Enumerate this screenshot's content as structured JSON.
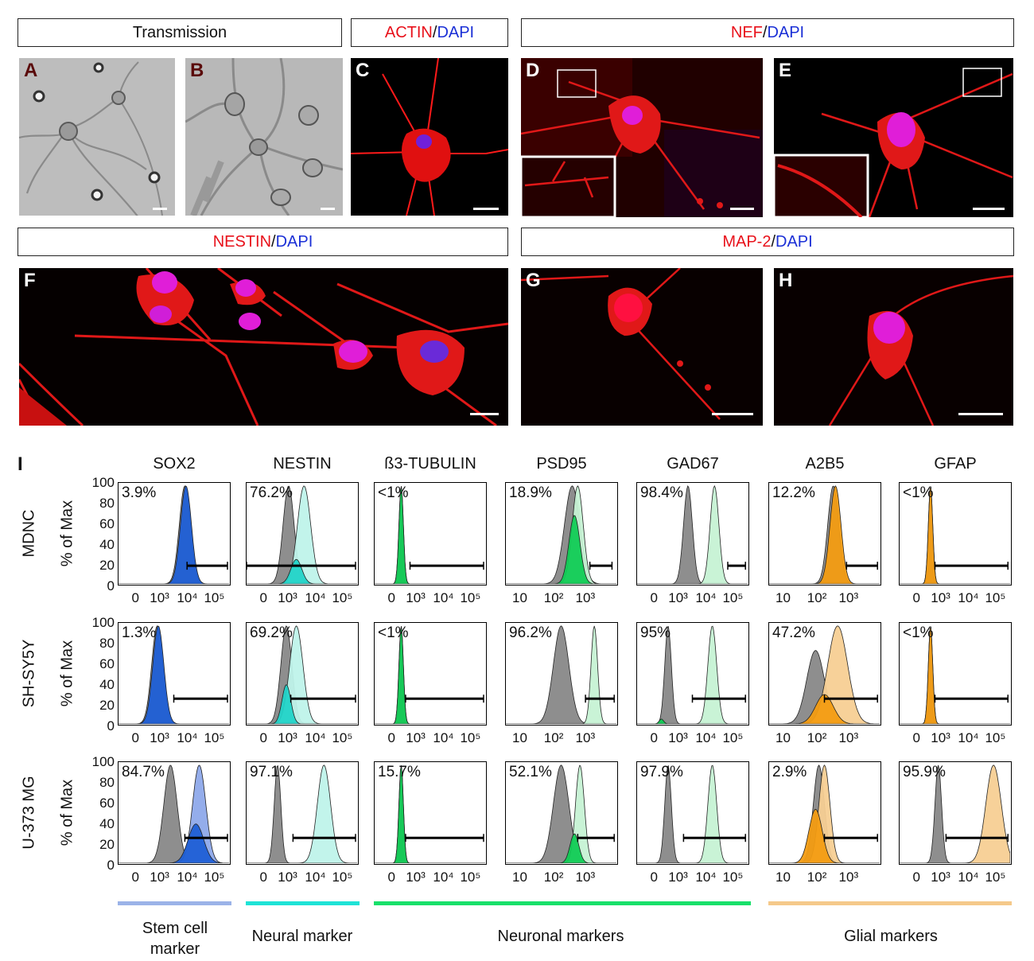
{
  "headers": {
    "transmission": "Transmission",
    "actin": {
      "a": "ACTIN",
      "sep": "/",
      "b": "DAPI"
    },
    "nef": {
      "a": "NEF",
      "sep": "/",
      "b": "DAPI"
    },
    "nestin": {
      "a": "NESTIN",
      "sep": "/",
      "b": "DAPI"
    },
    "map2": {
      "a": "MAP-2",
      "sep": "/",
      "b": "DAPI"
    }
  },
  "panel_labels": {
    "A": "A",
    "B": "B",
    "C": "C",
    "D": "D",
    "E": "E",
    "F": "F",
    "G": "G",
    "H": "H",
    "I": "I"
  },
  "columns": [
    "SOX2",
    "NESTIN",
    "ß3-TUBULIN",
    "PSD95",
    "GAD67",
    "A2B5",
    "GFAP"
  ],
  "rows": [
    "MDNC",
    "SH-SY5Y",
    "U-373 MG"
  ],
  "y_axis": {
    "label": "% of Max",
    "ticks": [
      "100",
      "80",
      "60",
      "40",
      "20",
      "0"
    ]
  },
  "x_ticks": {
    "wide": [
      "0",
      "10³",
      "10⁴",
      "10⁵"
    ],
    "narrow": [
      "10",
      "10²",
      "10³"
    ]
  },
  "percentages": [
    [
      "3.9%",
      "76.2%",
      "<1%",
      "18.9%",
      "98.4%",
      "12.2%",
      "<1%"
    ],
    [
      "1.3%",
      "69.2%",
      "<1%",
      "96.2%",
      "95%",
      "47.2%",
      "<1%"
    ],
    [
      "84.7%",
      "97.1%",
      "15.7%",
      "52.1%",
      "97.9%",
      "2.9%",
      "95.9%"
    ]
  ],
  "categories": [
    {
      "label1": "Stem cell",
      "label2": "marker",
      "color": "#9bb3e8"
    },
    {
      "label1": "Neural marker",
      "label2": "",
      "color": "#1ee3d6"
    },
    {
      "label1": "Neuronal markers",
      "label2": "",
      "color": "#18e06a"
    },
    {
      "label1": "Glial markers",
      "label2": "",
      "color": "#f5c98a"
    }
  ],
  "colors": {
    "sox2": "#1f5fd6",
    "sox2_light": "#8ea9ea",
    "nestin": "#22d3c8",
    "nestin_light": "#bff3ea",
    "neuronal": "#11cc55",
    "neuronal_light": "#c6f2d4",
    "glial": "#f39c12",
    "glial_light": "#f7cf94",
    "isotype": "#888888",
    "fluor_red": "#ff1010",
    "nucleus": "#d21ed8"
  }
}
